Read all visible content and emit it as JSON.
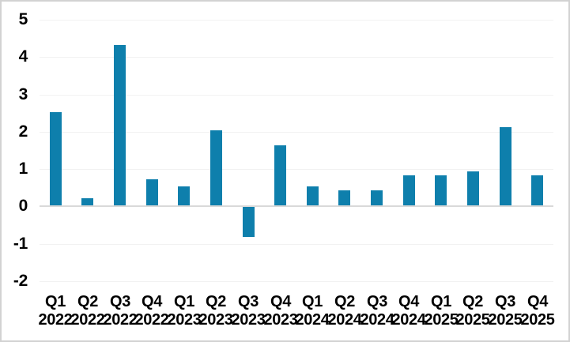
{
  "figure": {
    "background_color": "#ffffff",
    "border_color": "#d2d2d2"
  },
  "chart_data": {
    "type": "bar",
    "title": "",
    "xlabel": "",
    "ylabel": "",
    "categories": [
      "Q1 2022",
      "Q2 2022",
      "Q3 2022",
      "Q4 2022",
      "Q1 2023",
      "Q2 2023",
      "Q3 2023",
      "Q4 2023",
      "Q1 2024",
      "Q2 2024",
      "Q3 2024",
      "Q4 2024",
      "Q1 2025",
      "Q2 2025",
      "Q3 2025",
      "Q4 2025"
    ],
    "values": [
      2.5,
      0.2,
      4.3,
      0.7,
      0.5,
      2.0,
      -0.8,
      1.6,
      0.5,
      0.4,
      0.4,
      0.8,
      0.8,
      0.9,
      2.1,
      0.8
    ],
    "y_ticks": [
      5,
      4,
      3,
      2,
      1,
      0,
      -1,
      -2
    ],
    "ylim": [
      -2,
      5
    ],
    "grid": true,
    "legend": false,
    "legend_position": "none",
    "bar_color": "#0e7fac",
    "gridline_color": "#f2f2f2",
    "zero_line_color": "#d9d9d9",
    "label_color": "#000000"
  }
}
